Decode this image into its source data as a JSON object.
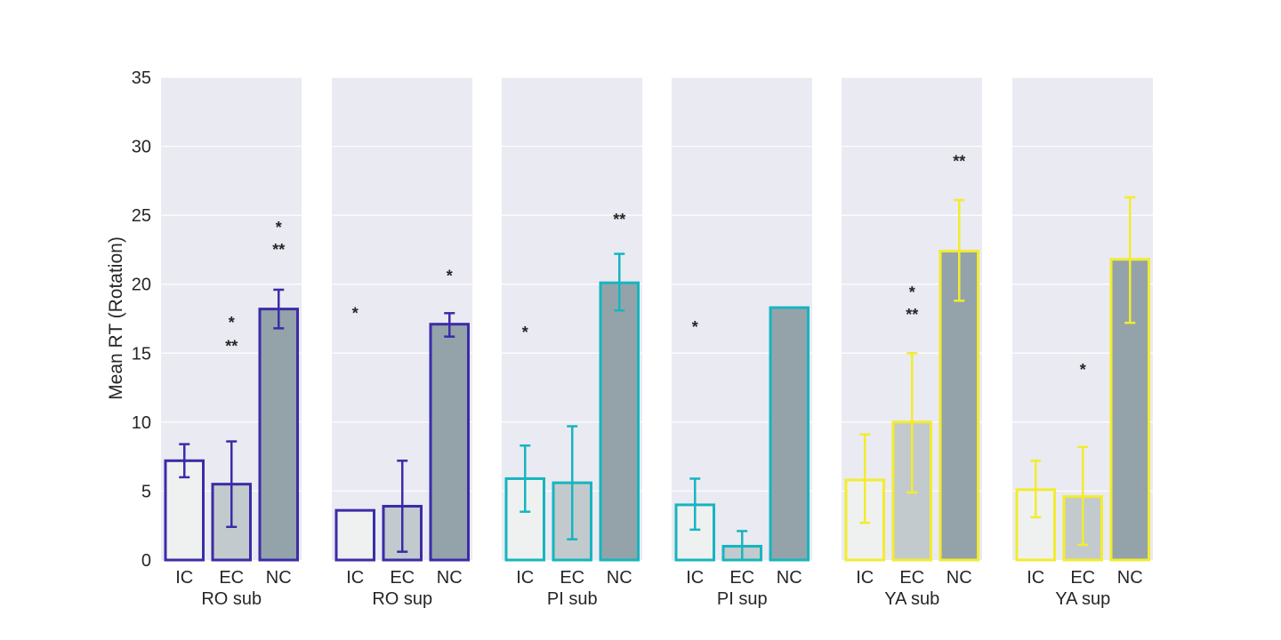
{
  "chart_data": {
    "type": "bar",
    "ylabel": "Mean RT (Rotation)",
    "ylim": [
      0,
      35
    ],
    "yticks": [
      "0",
      "5",
      "10",
      "15",
      "20",
      "25",
      "30",
      "35"
    ],
    "grid": true,
    "categories": [
      "IC",
      "EC",
      "NC"
    ],
    "fill_colors": [
      "#eff1f1",
      "#c3cacd",
      "#94a3aa"
    ],
    "panels": [
      {
        "label": "RO sub",
        "color": "#3a2ca8",
        "values": [
          7.2,
          5.5,
          18.2
        ],
        "err_low": [
          6.0,
          2.4,
          16.8
        ],
        "err_high": [
          8.4,
          8.6,
          19.6
        ],
        "annotations": [
          {
            "bar": 1,
            "y": 15.5,
            "text": "**"
          },
          {
            "bar": 1,
            "y": 17.2,
            "text": "*"
          },
          {
            "bar": 2,
            "y": 22.5,
            "text": "**"
          },
          {
            "bar": 2,
            "y": 24.1,
            "text": "*"
          }
        ]
      },
      {
        "label": "RO sup",
        "color": "#3a2ca8",
        "values": [
          3.6,
          3.9,
          17.1
        ],
        "err_low": [
          null,
          0.6,
          16.2
        ],
        "err_high": [
          null,
          7.2,
          17.9
        ],
        "annotations": [
          {
            "bar": 0,
            "y": 17.9,
            "text": "*"
          },
          {
            "bar": 2,
            "y": 20.6,
            "text": "*"
          }
        ]
      },
      {
        "label": "PI sub",
        "color": "#16b5bf",
        "values": [
          5.9,
          5.6,
          20.1
        ],
        "err_low": [
          3.5,
          1.5,
          18.1
        ],
        "err_high": [
          8.3,
          9.7,
          22.2
        ],
        "annotations": [
          {
            "bar": 0,
            "y": 16.5,
            "text": "*"
          },
          {
            "bar": 2,
            "y": 24.7,
            "text": "**"
          }
        ]
      },
      {
        "label": "PI sup",
        "color": "#16b5bf",
        "values": [
          4.0,
          1.0,
          18.3
        ],
        "err_low": [
          2.2,
          0.0,
          null
        ],
        "err_high": [
          5.9,
          2.1,
          null
        ],
        "annotations": [
          {
            "bar": 0,
            "y": 16.9,
            "text": "*"
          }
        ]
      },
      {
        "label": "YA sub",
        "color": "#f2ec2e",
        "values": [
          5.8,
          10.0,
          22.4
        ],
        "err_low": [
          2.7,
          4.9,
          18.8
        ],
        "err_high": [
          9.1,
          15.0,
          26.1
        ],
        "annotations": [
          {
            "bar": 1,
            "y": 17.8,
            "text": "**"
          },
          {
            "bar": 1,
            "y": 19.4,
            "text": "*"
          },
          {
            "bar": 2,
            "y": 28.9,
            "text": "**"
          }
        ]
      },
      {
        "label": "YA sup",
        "color": "#f2ec2e",
        "values": [
          5.1,
          4.6,
          21.8
        ],
        "err_low": [
          3.1,
          1.1,
          17.2
        ],
        "err_high": [
          7.2,
          8.2,
          26.3
        ],
        "annotations": [
          {
            "bar": 1,
            "y": 13.8,
            "text": "*"
          }
        ]
      }
    ]
  }
}
